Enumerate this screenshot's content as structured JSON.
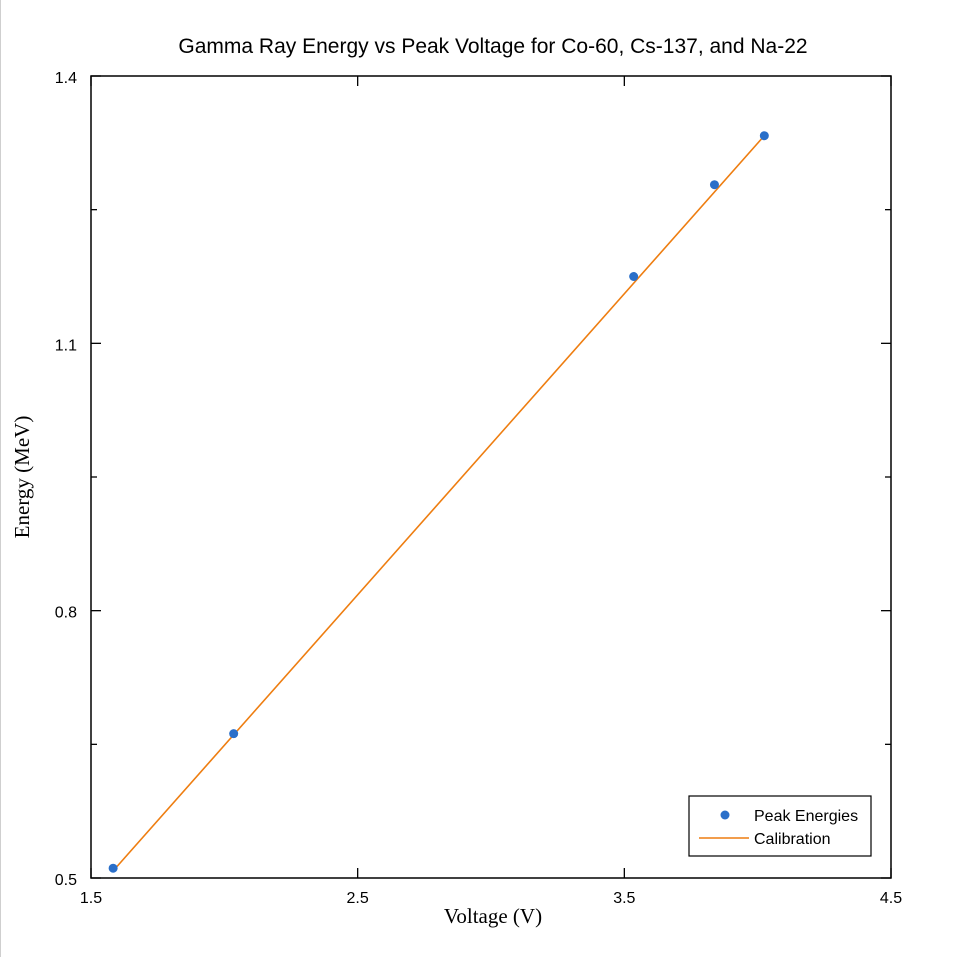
{
  "chart_data": {
    "type": "scatter",
    "title": "Gamma Ray Energy vs Peak Voltage for Co-60, Cs-137, and Na-22",
    "xlabel": "Voltage (V)",
    "ylabel": "Energy (MeV)",
    "xlim": [
      1.5,
      4.5
    ],
    "ylim": [
      0.5,
      1.4
    ],
    "xticks": [
      1.5,
      2.5,
      3.5,
      4.5
    ],
    "xtick_labels": [
      "1.5",
      "2.5",
      "3.5",
      "4.5"
    ],
    "yticks": [
      0.5,
      0.8,
      1.1,
      1.4
    ],
    "ytick_labels": [
      "0.5",
      "0.8",
      "1.1",
      "1.4"
    ],
    "y_minor_ticks": [
      0.65,
      0.95,
      1.25
    ],
    "grid": false,
    "legend_position": "bottom-right",
    "series": [
      {
        "name": "Peak Energies",
        "kind": "scatter",
        "color": "#2a6fc9",
        "x": [
          1.583,
          2.035,
          3.535,
          3.838,
          4.025
        ],
        "y": [
          0.511,
          0.662,
          1.175,
          1.278,
          1.333
        ]
      },
      {
        "name": "Calibration",
        "kind": "line",
        "color": "#ee7d10",
        "x": [
          1.583,
          4.025
        ],
        "y": [
          0.508,
          1.333
        ]
      }
    ]
  }
}
